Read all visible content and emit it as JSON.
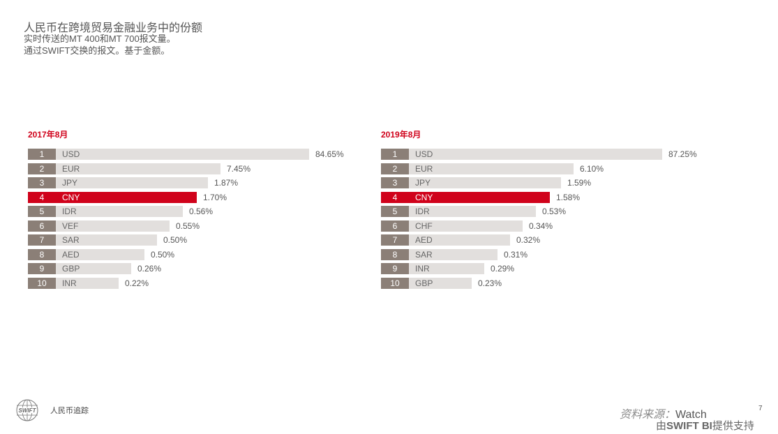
{
  "header": {
    "title": "人民币在跨境贸易金融业务中的份额",
    "subtitle_lines": [
      "实时传送的MT 400和MT 700报文量。",
      "通过SWIFT交换的报文。基于金额。"
    ]
  },
  "panels": [
    {
      "title": "2017年8月",
      "bar_color": "#e2dfdd",
      "highlight_color": "#d0021b",
      "rows": [
        {
          "rank": 1,
          "currency": "USD",
          "share": "84.65%"
        },
        {
          "rank": 2,
          "currency": "EUR",
          "share": "7.45%"
        },
        {
          "rank": 3,
          "currency": "JPY",
          "share": "1.87%"
        },
        {
          "rank": 4,
          "currency": "CNY",
          "share": "1.70%",
          "highlight": true
        },
        {
          "rank": 5,
          "currency": "IDR",
          "share": "0.56%"
        },
        {
          "rank": 6,
          "currency": "VEF",
          "share": "0.55%"
        },
        {
          "rank": 7,
          "currency": "SAR",
          "share": "0.50%"
        },
        {
          "rank": 8,
          "currency": "AED",
          "share": "0.50%"
        },
        {
          "rank": 9,
          "currency": "GBP",
          "share": "0.26%"
        },
        {
          "rank": 10,
          "currency": "INR",
          "share": "0.22%"
        }
      ]
    },
    {
      "title": "2019年8月",
      "bar_color": "#e2dfdd",
      "highlight_color": "#d0021b",
      "rows": [
        {
          "rank": 1,
          "currency": "USD",
          "share": "87.25%"
        },
        {
          "rank": 2,
          "currency": "EUR",
          "share": "6.10%"
        },
        {
          "rank": 3,
          "currency": "JPY",
          "share": "1.59%"
        },
        {
          "rank": 4,
          "currency": "CNY",
          "share": "1.58%",
          "highlight": true
        },
        {
          "rank": 5,
          "currency": "IDR",
          "share": "0.53%"
        },
        {
          "rank": 6,
          "currency": "CHF",
          "share": "0.34%"
        },
        {
          "rank": 7,
          "currency": "AED",
          "share": "0.32%"
        },
        {
          "rank": 8,
          "currency": "SAR",
          "share": "0.31%"
        },
        {
          "rank": 9,
          "currency": "INR",
          "share": "0.29%"
        },
        {
          "rank": 10,
          "currency": "GBP",
          "share": "0.23%"
        }
      ]
    }
  ],
  "footer": {
    "logo_text": "SWIFT",
    "label": "人民币追踪",
    "source_label": "资料来源：",
    "source": "Watch",
    "powered_pre": "由",
    "powered_brand": "SWIFT BI",
    "powered_post": "提供支持",
    "page": "7"
  }
}
